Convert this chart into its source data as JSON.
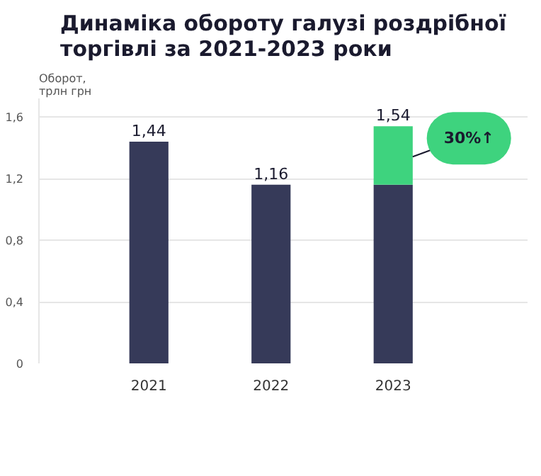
{
  "chart_data": {
    "type": "bar",
    "title": "Динаміка обороту галузі роздрібної\nторгівлі за 2021-2023 роки",
    "ylabel": "Оборот,\nтрлн грн",
    "categories": [
      "2021",
      "2022",
      "2023"
    ],
    "stacked": true,
    "series": [
      {
        "color": "#363a59",
        "values": [
          1.44,
          1.16,
          1.16
        ]
      },
      {
        "color": "#3ed37e",
        "values": [
          null,
          null,
          0.38
        ]
      }
    ],
    "totals": [
      "1,44",
      "1,16",
      "1,54"
    ],
    "ylim": [
      0,
      1.72
    ],
    "yticks": [
      {
        "value": 0,
        "label": "0"
      },
      {
        "value": 0.4,
        "label": "0,4"
      },
      {
        "value": 0.8,
        "label": "0,8"
      },
      {
        "value": 1.2,
        "label": "1,2"
      },
      {
        "value": 1.6,
        "label": "1,6"
      }
    ],
    "grid": "y",
    "annotations": [
      "30%↑"
    ]
  }
}
